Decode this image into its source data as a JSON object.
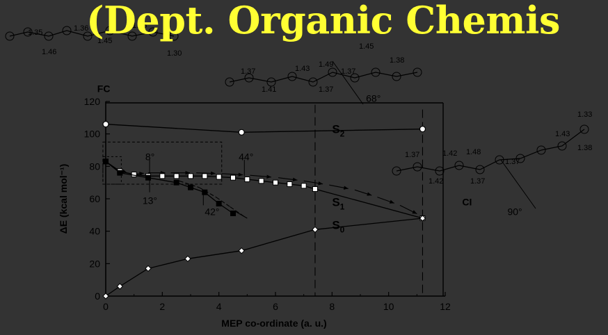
{
  "slide": {
    "title": "(Dept. Organic Chemis"
  },
  "colors": {
    "background": "#333333",
    "title": "#FFFF33",
    "ink": "#000000"
  },
  "chart_data": {
    "type": "line",
    "xlabel": "MEP co-ordinate (a. u.)",
    "ylabel": "ΔE (kcal mol⁻¹)",
    "xlim": [
      0,
      12
    ],
    "ylim": [
      0,
      120
    ],
    "x_ticks": [
      "0",
      "2",
      "4",
      "6",
      "8",
      "10",
      "12"
    ],
    "y_ticks": [
      "0",
      "20",
      "40",
      "60",
      "80",
      "100",
      "120"
    ],
    "grid": false,
    "series": [
      {
        "name": "S2",
        "x": [
          0,
          4.8,
          11.2
        ],
        "y": [
          106,
          101,
          103
        ],
        "marker": "circle"
      },
      {
        "name": "S1",
        "x": [
          0,
          0.5,
          1.0,
          1.5,
          2.0,
          2.5,
          3.0,
          3.5,
          4.0,
          4.5,
          5.0,
          5.5,
          6.0,
          6.5,
          7.0,
          7.4,
          11.2
        ],
        "y": [
          83,
          77,
          75,
          74,
          74,
          74,
          74,
          74,
          73.5,
          73,
          72,
          71,
          70,
          69,
          68,
          66,
          48
        ],
        "marker": "square-open"
      },
      {
        "name": "S0",
        "x": [
          0,
          0.5,
          1.5,
          2.9,
          4.8,
          7.4,
          11.2
        ],
        "y": [
          0,
          6,
          17,
          23,
          28,
          41,
          48
        ],
        "marker": "diamond"
      },
      {
        "name": "",
        "x": [
          0,
          0.5,
          1.5,
          2.5,
          3.0,
          3.5,
          4.0,
          4.5
        ],
        "y": [
          83,
          76,
          73,
          70,
          67,
          64,
          57,
          51
        ],
        "marker": "square-filled"
      }
    ],
    "series_labels": [
      {
        "text": "S",
        "sub": "2",
        "x": 8.0,
        "y": 103
      },
      {
        "text": "S",
        "sub": "1",
        "x": 8.0,
        "y": 58
      },
      {
        "text": "S",
        "sub": "0",
        "x": 8.0,
        "y": 44
      }
    ],
    "annotations": [
      {
        "text": "FC",
        "x": -0.3,
        "y": 128
      },
      {
        "text": "CI",
        "x": 12.6,
        "y": 58
      },
      {
        "text": "8°",
        "x": 1.4,
        "y": 86
      },
      {
        "text": "44°",
        "x": 4.7,
        "y": 86
      },
      {
        "text": "13°",
        "x": 1.3,
        "y": 59
      },
      {
        "text": "42°",
        "x": 3.5,
        "y": 52
      },
      {
        "text": "68°",
        "x": 9.2,
        "y": 122
      },
      {
        "text": "90°",
        "x": 14.2,
        "y": 52
      }
    ],
    "molecule_labels": [
      "1.35",
      "1.36",
      "1.46",
      "1.45",
      "1.36",
      "1.30",
      "1.37",
      "1.43",
      "1.41",
      "1.49",
      "1.37",
      "1.45",
      "1.38",
      "1.37",
      "1.37",
      "1.42",
      "1.42",
      "1.48",
      "1.37",
      "1.37",
      "1.43",
      "1.33",
      "1.38"
    ]
  }
}
